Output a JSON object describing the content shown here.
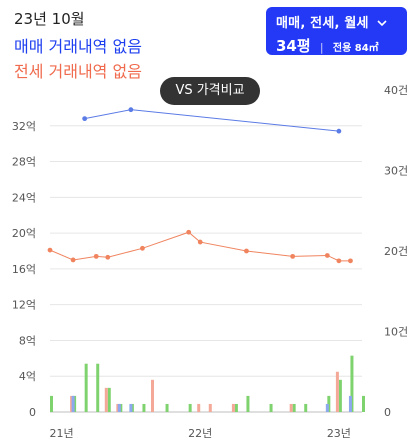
{
  "header": {
    "period": "23년 10월",
    "sale_status": "매매 거래내역 없음",
    "jeonse_status": "전세 거래내역 없음"
  },
  "filter": {
    "types_label": "매매, 전세, 월세",
    "chevron_icon": "chevron-down-icon",
    "pyeong": "34평",
    "separator": "|",
    "area_label": "전용 84㎡"
  },
  "compare_button": {
    "label": "VS 가격비교"
  },
  "colors": {
    "sale": "#5b7be6",
    "jeonse": "#f0845f",
    "volume_green": "#7fd36e",
    "volume_salmon": "#f4a898",
    "volume_blue": "#8da8ee",
    "filter_bg": "#2339f5"
  },
  "chart_data": {
    "type": "line",
    "x_ticks": [
      "21년",
      "22년",
      "23년"
    ],
    "y_left_ticks": [
      "0",
      "4억",
      "8억",
      "12억",
      "16억",
      "20억",
      "24억",
      "28억",
      "32억"
    ],
    "y_right_ticks": [
      "0",
      "10건",
      "20건",
      "30건",
      "40건"
    ],
    "y_left_lim": [
      0,
      36
    ],
    "y_right_lim": [
      0,
      40
    ],
    "x_lim": [
      "2020-12",
      "2023-03"
    ],
    "series": [
      {
        "key": "sale",
        "x": [
          "2021-03",
          "2021-07",
          "2023-01"
        ],
        "y": [
          32.8,
          33.8,
          31.4
        ]
      },
      {
        "key": "jeonse",
        "x": [
          "2020-12",
          "2021-02",
          "2021-04",
          "2021-05",
          "2021-08",
          "2021-12",
          "2022-01",
          "2022-05",
          "2022-09",
          "2022-12",
          "2023-01",
          "2023-02"
        ],
        "y": [
          18.1,
          17.0,
          17.4,
          17.3,
          18.3,
          20.1,
          19.0,
          18.0,
          17.4,
          17.5,
          16.9,
          16.9
        ]
      }
    ],
    "volume_series": [
      {
        "key": "green",
        "x": [
          "2020-12",
          "2021-02",
          "2021-03",
          "2021-04",
          "2021-05",
          "2021-06",
          "2021-07",
          "2021-08",
          "2021-10",
          "2021-12",
          "2022-04",
          "2022-05",
          "2022-07",
          "2022-09",
          "2022-10",
          "2022-12",
          "2023-01",
          "2023-02",
          "2023-03"
        ],
        "y": [
          2,
          2,
          6,
          6,
          3,
          1,
          1,
          1,
          1,
          1,
          1,
          2,
          1,
          1,
          1,
          2,
          4,
          7,
          2
        ]
      },
      {
        "key": "salmon",
        "x": [
          "2021-02",
          "2021-05",
          "2021-06",
          "2021-09",
          "2022-01",
          "2022-02",
          "2022-04",
          "2022-09",
          "2023-01"
        ],
        "y": [
          2,
          3,
          1,
          4,
          1,
          1,
          1,
          1,
          5
        ]
      },
      {
        "key": "blue",
        "x": [
          "2021-02",
          "2021-06",
          "2021-07",
          "2022-12",
          "2023-02"
        ],
        "y": [
          2,
          1,
          1,
          1,
          2
        ]
      }
    ]
  }
}
